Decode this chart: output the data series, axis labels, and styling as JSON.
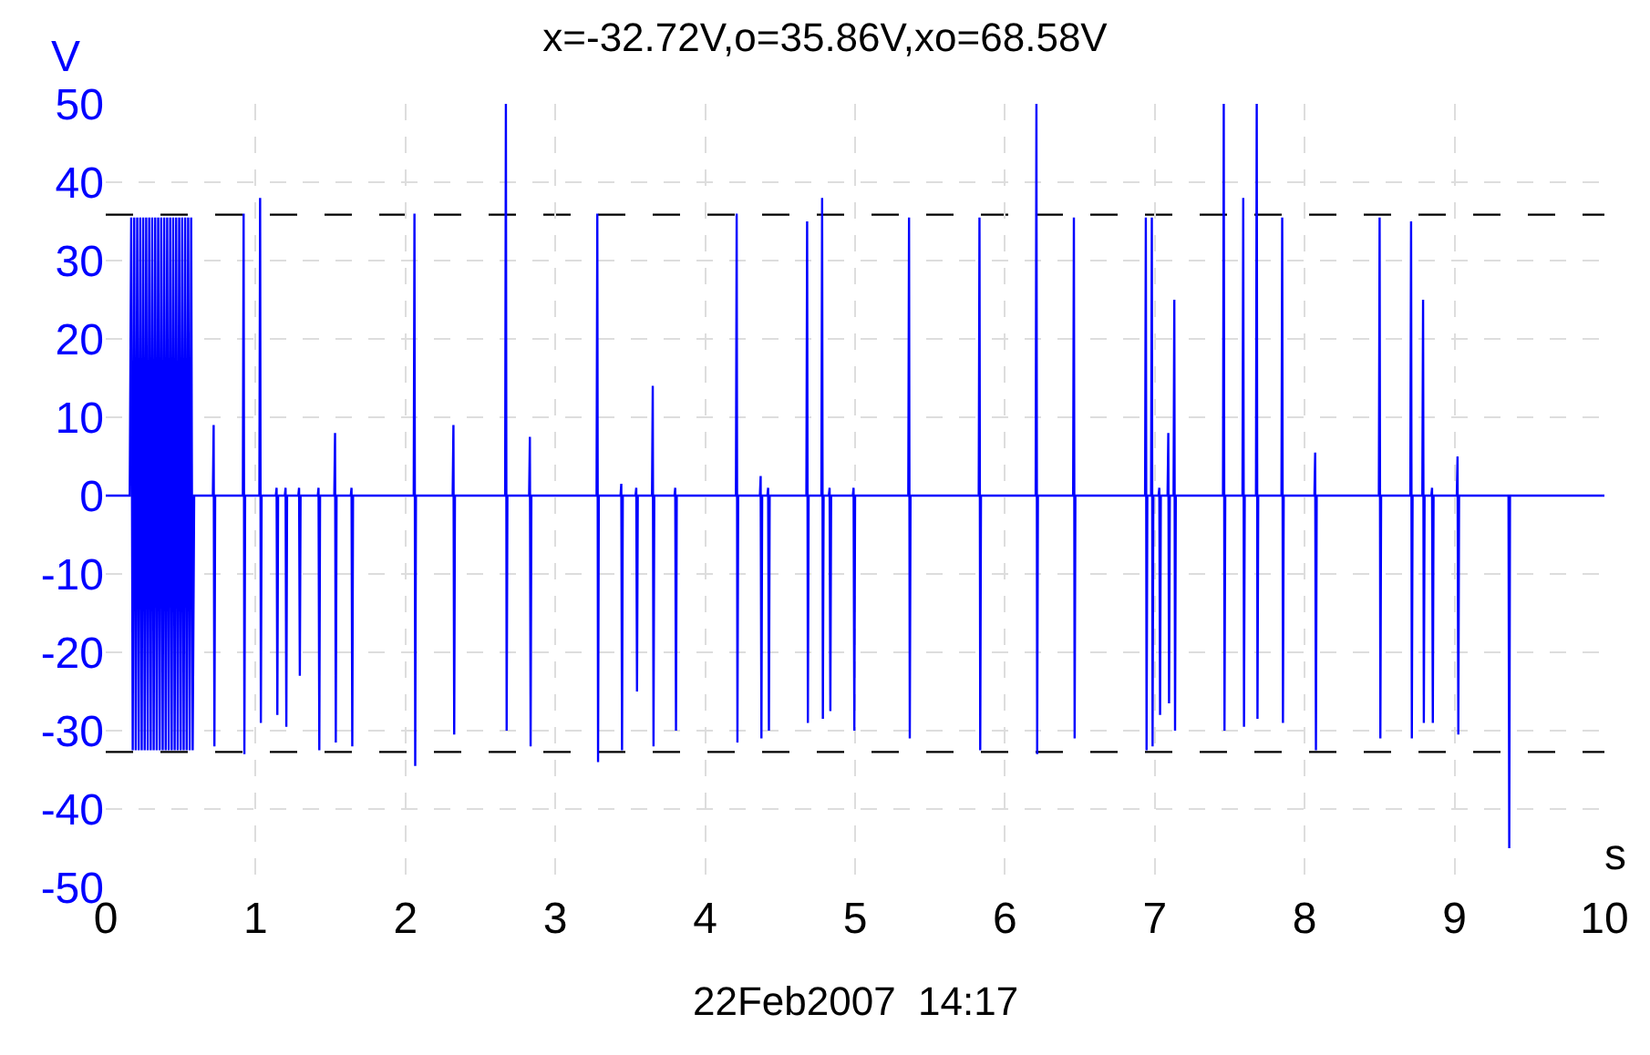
{
  "chart_data": {
    "type": "line",
    "title": "x=-32.72V,o=35.86V,xo=68.58V",
    "xlabel": "s",
    "ylabel": "V",
    "annotations": [
      "22Feb2007  14:17"
    ],
    "xlim": [
      0,
      10
    ],
    "xticks": [
      0,
      1,
      2,
      3,
      4,
      5,
      6,
      7,
      8,
      9,
      10
    ],
    "ylim": [
      -50,
      50
    ],
    "yticks": [
      -50,
      -40,
      -30,
      -20,
      -10,
      0,
      10,
      20,
      30,
      40,
      50
    ],
    "grid": true,
    "marker": "none",
    "line_style": "solid",
    "ref_lines": [
      {
        "axis": "y",
        "value": 35.86,
        "color": "#000000",
        "line_style": "dashed"
      },
      {
        "axis": "y",
        "value": -32.72,
        "color": "#000000",
        "line_style": "dashed"
      }
    ],
    "series": [
      {
        "color": "#0000ff",
        "x": [
          0,
          0.16,
          0.17,
          0.18,
          0.19,
          0.2,
          0.21,
          0.22,
          0.23,
          0.24,
          0.25,
          0.26,
          0.27,
          0.28,
          0.29,
          0.3,
          0.31,
          0.32,
          0.33,
          0.34,
          0.35,
          0.36,
          0.37,
          0.38,
          0.39,
          0.4,
          0.41,
          0.42,
          0.43,
          0.44,
          0.45,
          0.46,
          0.47,
          0.48,
          0.49,
          0.5,
          0.51,
          0.52,
          0.53,
          0.54,
          0.55,
          0.56,
          0.57,
          0.58,
          0.59,
          0.715,
          0.72,
          0.725,
          0.73,
          0.915,
          0.92,
          0.925,
          0.93,
          1.025,
          1.03,
          1.035,
          1.04,
          1.135,
          1.14,
          1.145,
          1.15,
          1.195,
          1.2,
          1.205,
          1.21,
          1.285,
          1.29,
          1.295,
          1.3,
          1.415,
          1.42,
          1.425,
          1.43,
          1.525,
          1.53,
          1.535,
          1.54,
          1.635,
          1.64,
          1.645,
          1.65,
          2.055,
          2.06,
          2.065,
          2.07,
          2.315,
          2.32,
          2.325,
          2.33,
          2.665,
          2.67,
          2.675,
          2.68,
          2.825,
          2.83,
          2.835,
          2.84,
          3.275,
          3.28,
          3.285,
          3.29,
          3.435,
          3.44,
          3.445,
          3.45,
          3.535,
          3.54,
          3.545,
          3.55,
          3.645,
          3.65,
          3.655,
          3.66,
          3.795,
          3.8,
          3.805,
          3.81,
          4.205,
          4.21,
          4.215,
          4.22,
          4.365,
          4.37,
          4.375,
          4.38,
          4.415,
          4.42,
          4.425,
          4.43,
          4.675,
          4.68,
          4.685,
          4.69,
          4.775,
          4.78,
          4.785,
          4.79,
          4.825,
          4.83,
          4.835,
          4.84,
          4.985,
          4.99,
          4.995,
          5,
          5.355,
          5.36,
          5.365,
          5.37,
          5.825,
          5.83,
          5.835,
          5.84,
          6.205,
          6.21,
          6.215,
          6.22,
          6.455,
          6.46,
          6.465,
          6.47,
          6.935,
          6.94,
          6.945,
          6.95,
          6.975,
          6.98,
          6.985,
          6.99,
          7.025,
          7.03,
          7.035,
          7.04,
          7.085,
          7.09,
          7.095,
          7.1,
          7.125,
          7.13,
          7.135,
          7.14,
          7.455,
          7.46,
          7.465,
          7.47,
          7.585,
          7.59,
          7.595,
          7.6,
          7.675,
          7.68,
          7.685,
          7.69,
          7.845,
          7.85,
          7.855,
          7.86,
          8.065,
          8.07,
          8.075,
          8.08,
          8.495,
          8.5,
          8.505,
          8.51,
          8.705,
          8.71,
          8.715,
          8.72,
          8.785,
          8.79,
          8.795,
          8.8,
          8.845,
          8.85,
          8.855,
          8.86,
          9.015,
          9.02,
          9.025,
          9.03,
          9.355,
          9.36,
          9.365,
          9.37,
          10
        ],
        "values": [
          0,
          0,
          35.5,
          -32.5,
          35.5,
          -32.5,
          35.5,
          -32.5,
          35.5,
          -32.5,
          35.5,
          -32.5,
          35.5,
          -32.5,
          35.5,
          -32.5,
          35.5,
          -32.5,
          35.5,
          -32.5,
          35.5,
          -32.5,
          35.5,
          -32.5,
          35.5,
          -32.5,
          35.5,
          -32.5,
          35.5,
          -32.5,
          35.5,
          -32.5,
          35.5,
          -32.5,
          35.5,
          -32.5,
          35.5,
          -32.5,
          35.5,
          -32.5,
          35.5,
          -32.5,
          35.5,
          -32.5,
          0,
          0,
          9,
          -32,
          0,
          0,
          36,
          -33,
          0,
          0,
          38,
          -29,
          0,
          0,
          1,
          -28,
          0,
          0,
          1,
          -29.5,
          0,
          0,
          1,
          -23,
          0,
          0,
          1,
          -32.5,
          0,
          0,
          8,
          -31.5,
          0,
          0,
          1,
          -32,
          0,
          0,
          36,
          -34.5,
          0,
          0,
          9,
          -30.5,
          0,
          0,
          50,
          -30,
          0,
          0,
          7.5,
          -32,
          0,
          0,
          36,
          -34,
          0,
          0,
          1.5,
          -32.5,
          0,
          0,
          1,
          -25,
          0,
          0,
          14,
          -32,
          0,
          0,
          1,
          -30,
          0,
          0,
          36,
          -31.5,
          0,
          0,
          2.5,
          -31,
          0,
          0,
          1,
          -30,
          0,
          0,
          35,
          -29,
          0,
          0,
          38,
          -28.5,
          0,
          0,
          1,
          -27.5,
          0,
          0,
          1,
          -30,
          0,
          0,
          35.5,
          -31,
          0,
          0,
          35.5,
          -32.5,
          0,
          0,
          50,
          -33,
          0,
          0,
          35.5,
          -31,
          0,
          0,
          35.5,
          -32.5,
          0,
          0,
          35.5,
          -32,
          0,
          0,
          1,
          -28,
          0,
          0,
          8,
          -26.5,
          0,
          0,
          25,
          -30,
          0,
          0,
          50,
          -30,
          0,
          0,
          38,
          -29.5,
          0,
          0,
          50,
          -28.5,
          0,
          0,
          35.5,
          -29,
          0,
          0,
          5.5,
          -32.5,
          0,
          0,
          35.5,
          -31,
          0,
          0,
          35,
          -31,
          0,
          0,
          25,
          -29,
          0,
          0,
          1,
          -29,
          0,
          0,
          5,
          -30.5,
          0,
          0,
          0,
          -45,
          0,
          0
        ]
      }
    ]
  }
}
